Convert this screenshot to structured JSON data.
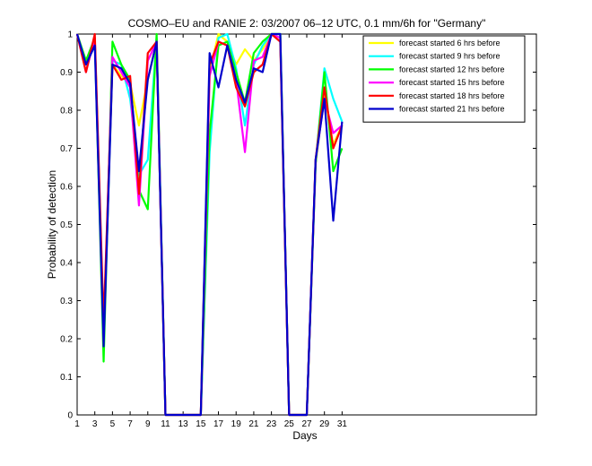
{
  "chart_data": {
    "type": "line",
    "title": "COSMO–EU and RANIE 2: 03/2007 06–12 UTC, 0.1 mm/6h for \"Germany\"",
    "xlabel": "Days",
    "ylabel": "Probability of detection",
    "xlim": [
      1,
      53
    ],
    "ylim": [
      0,
      1
    ],
    "x_ticks": [
      1,
      3,
      5,
      7,
      9,
      11,
      13,
      15,
      17,
      19,
      21,
      23,
      25,
      27,
      29,
      31
    ],
    "x_tick_labels": [
      "1",
      "3",
      "5",
      "7",
      "9",
      "11",
      "13",
      "15",
      "17",
      "19",
      "21",
      "23",
      "25",
      "27",
      "29",
      "31"
    ],
    "y_ticks": [
      0,
      0.1,
      0.2,
      0.3,
      0.4,
      0.5,
      0.6,
      0.7,
      0.8,
      0.9,
      1
    ],
    "y_tick_labels": [
      "0",
      "0.1",
      "0.2",
      "0.3",
      "0.4",
      "0.5",
      "0.6",
      "0.7",
      "0.8",
      "0.9",
      "1"
    ],
    "grid": false,
    "legend_position": "top-right",
    "x": [
      1,
      2,
      3,
      4,
      5,
      6,
      7,
      8,
      9,
      10,
      11,
      12,
      13,
      14,
      15,
      16,
      17,
      18,
      19,
      20,
      21,
      22,
      23,
      24,
      25,
      26,
      27,
      28,
      29,
      30,
      31
    ],
    "series": [
      {
        "name": "forecast started 6 hrs before",
        "color": "#ffff00",
        "values": [
          1.0,
          0.92,
          0.99,
          0.2,
          0.92,
          0.89,
          0.87,
          0.76,
          0.88,
          0.98,
          0,
          0,
          0,
          0,
          0,
          0.9,
          1.0,
          0.98,
          0.92,
          0.96,
          0.93,
          0.96,
          1.0,
          1.0,
          0,
          0,
          0,
          0.66,
          0.84,
          0.71,
          0.76
        ]
      },
      {
        "name": "forecast started 9 hrs before",
        "color": "#00ffff",
        "values": [
          1.0,
          0.92,
          0.98,
          0.19,
          0.93,
          0.92,
          0.83,
          0.63,
          0.67,
          0.99,
          0,
          0,
          0,
          0,
          0,
          0.69,
          0.99,
          1.0,
          0.91,
          0.76,
          0.92,
          0.97,
          1.0,
          1.0,
          0,
          0,
          0,
          0.66,
          0.91,
          0.83,
          0.77
        ]
      },
      {
        "name": "forecast started 12 hrs before",
        "color": "#00ff00",
        "values": [
          1.0,
          0.93,
          0.99,
          0.14,
          0.98,
          0.92,
          0.88,
          0.59,
          0.54,
          1.0,
          0,
          0,
          0,
          0,
          0,
          0.74,
          0.97,
          0.98,
          0.9,
          0.82,
          0.95,
          0.98,
          1.0,
          1.0,
          0,
          0,
          0,
          0.66,
          0.9,
          0.64,
          0.7
        ]
      },
      {
        "name": "forecast started 15 hrs before",
        "color": "#ff00ff",
        "values": [
          1.0,
          0.9,
          0.99,
          0.21,
          0.94,
          0.9,
          0.86,
          0.55,
          0.93,
          0.98,
          0,
          0,
          0,
          0,
          0,
          0.89,
          0.98,
          0.97,
          0.88,
          0.69,
          0.93,
          0.94,
          1.0,
          0.99,
          0,
          0,
          0,
          0.67,
          0.83,
          0.74,
          0.76
        ]
      },
      {
        "name": "forecast started 18 hrs before",
        "color": "#ff0000",
        "values": [
          1.0,
          0.9,
          1.0,
          0.24,
          0.92,
          0.88,
          0.89,
          0.58,
          0.95,
          0.98,
          0,
          0,
          0,
          0,
          0,
          0.92,
          0.98,
          0.97,
          0.86,
          0.81,
          0.9,
          0.92,
          1.0,
          0.98,
          0,
          0,
          0,
          0.67,
          0.86,
          0.7,
          0.76
        ]
      },
      {
        "name": "forecast started 21 hrs before",
        "color": "#0000cc",
        "values": [
          1.0,
          0.92,
          0.97,
          0.18,
          0.92,
          0.91,
          0.87,
          0.64,
          0.88,
          0.98,
          0,
          0,
          0,
          0,
          0,
          0.95,
          0.86,
          0.97,
          0.88,
          0.82,
          0.91,
          0.9,
          1.0,
          1.0,
          0,
          0,
          0,
          0.67,
          0.83,
          0.51,
          0.77
        ]
      }
    ]
  }
}
